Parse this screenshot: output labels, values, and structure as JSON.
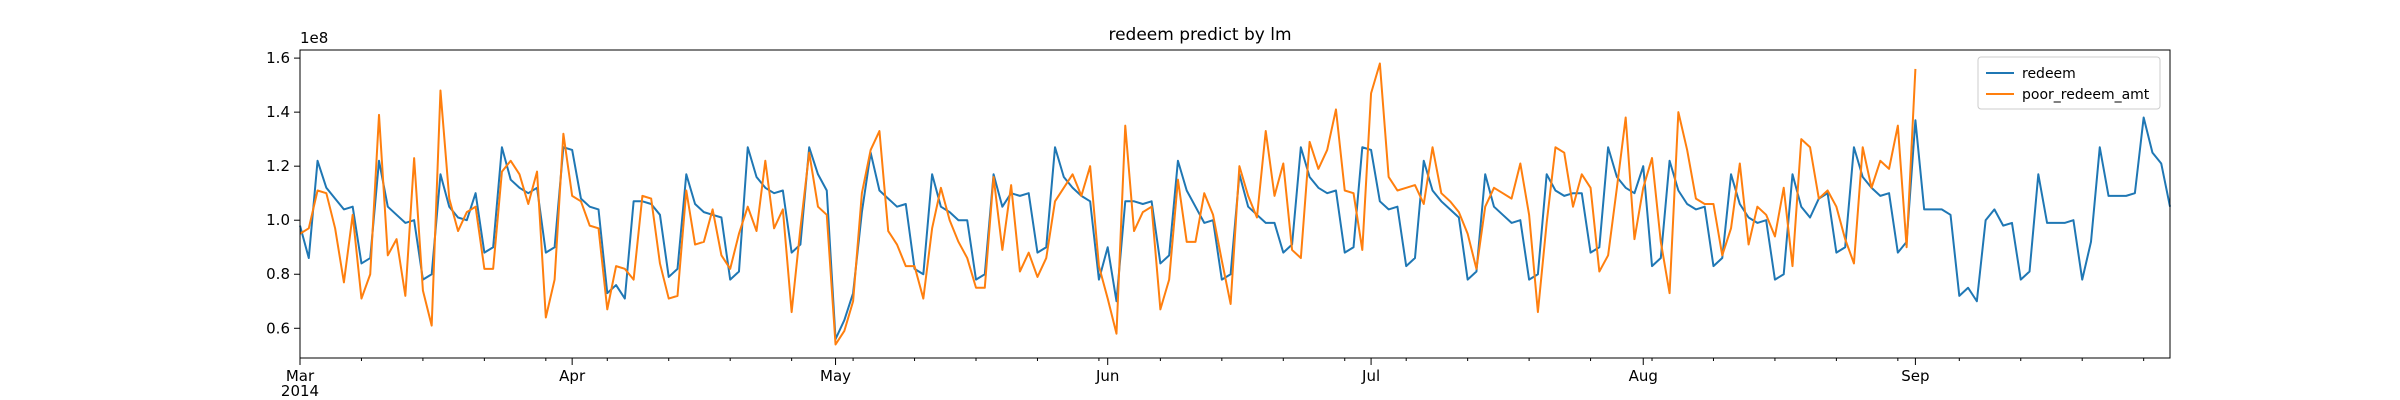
{
  "chart_data": {
    "type": "line",
    "title": "redeem predict by lm",
    "xlabel": "",
    "ylabel": "",
    "y_offset_text": "1e8",
    "x_start": "2014-03-01",
    "x_end": "2014-09-30",
    "ylim": [
      0.49,
      1.63
    ],
    "y_ticks": [
      0.6,
      0.8,
      1.0,
      1.2,
      1.4,
      1.6
    ],
    "y_tick_labels": [
      "0.6",
      "0.8",
      "1.0",
      "1.2",
      "1.4",
      "1.6"
    ],
    "x_ticks": [
      {
        "date": "2014-03-01",
        "label": "Mar",
        "sublabel": "2014"
      },
      {
        "date": "2014-04-01",
        "label": "Apr"
      },
      {
        "date": "2014-05-01",
        "label": "May"
      },
      {
        "date": "2014-06-01",
        "label": "Jun"
      },
      {
        "date": "2014-07-01",
        "label": "Jul"
      },
      {
        "date": "2014-08-01",
        "label": "Aug"
      },
      {
        "date": "2014-09-01",
        "label": "Sep"
      }
    ],
    "grid": false,
    "legend": "top-right",
    "series": [
      {
        "name": "redeem",
        "color": "#1f77b4",
        "start": "2014-03-01",
        "values": [
          0.98,
          0.86,
          1.22,
          1.12,
          1.08,
          1.04,
          1.05,
          0.84,
          0.86,
          1.22,
          1.05,
          1.02,
          0.99,
          1.0,
          0.78,
          0.8,
          1.17,
          1.05,
          1.01,
          1.0,
          1.1,
          0.88,
          0.9,
          1.27,
          1.15,
          1.12,
          1.1,
          1.12,
          0.88,
          0.9,
          1.27,
          1.26,
          1.08,
          1.05,
          1.04,
          0.73,
          0.76,
          0.71,
          1.07,
          1.07,
          1.06,
          1.02,
          0.79,
          0.82,
          1.17,
          1.06,
          1.03,
          1.02,
          1.01,
          0.78,
          0.81,
          1.27,
          1.16,
          1.12,
          1.1,
          1.11,
          0.88,
          0.91,
          1.27,
          1.17,
          1.11,
          0.56,
          0.63,
          0.73,
          1.03,
          1.25,
          1.11,
          1.08,
          1.05,
          1.06,
          0.82,
          0.8,
          1.17,
          1.05,
          1.03,
          1.0,
          1.0,
          0.78,
          0.8,
          1.17,
          1.05,
          1.1,
          1.09,
          1.1,
          0.88,
          0.9,
          1.27,
          1.16,
          1.12,
          1.09,
          1.07,
          0.78,
          0.9,
          0.7,
          1.07,
          1.07,
          1.06,
          1.07,
          0.84,
          0.87,
          1.22,
          1.11,
          1.05,
          0.99,
          1.0,
          0.78,
          0.8,
          1.17,
          1.05,
          1.02,
          0.99,
          0.99,
          0.88,
          0.91,
          1.27,
          1.16,
          1.12,
          1.1,
          1.11,
          0.88,
          0.9,
          1.27,
          1.26,
          1.07,
          1.04,
          1.05,
          0.83,
          0.86,
          1.22,
          1.11,
          1.07,
          1.04,
          1.01,
          0.78,
          0.81,
          1.17,
          1.05,
          1.02,
          0.99,
          1.0,
          0.78,
          0.8,
          1.17,
          1.11,
          1.09,
          1.1,
          1.1,
          0.88,
          0.9,
          1.27,
          1.16,
          1.12,
          1.1,
          1.2,
          0.83,
          0.86,
          1.22,
          1.11,
          1.06,
          1.04,
          1.05,
          0.83,
          0.86,
          1.17,
          1.06,
          1.01,
          0.99,
          1.0,
          0.78,
          0.8,
          1.17,
          1.05,
          1.01,
          1.08,
          1.1,
          0.88,
          0.9,
          1.27,
          1.16,
          1.12,
          1.09,
          1.1,
          0.88,
          0.92,
          1.37,
          1.04,
          1.04,
          1.04,
          1.02,
          0.72,
          0.75,
          0.7,
          1.0,
          1.04,
          0.98,
          0.99,
          0.78,
          0.81,
          1.17,
          0.99,
          0.99,
          0.99,
          1.0,
          0.78,
          0.92,
          1.27,
          1.09,
          1.09,
          1.09,
          1.1,
          1.38,
          1.25,
          1.21,
          1.05
        ]
      },
      {
        "name": "poor_redeem_amt",
        "color": "#ff7f0e",
        "start": "2014-03-01",
        "values": [
          0.95,
          0.97,
          1.11,
          1.1,
          0.97,
          0.77,
          1.02,
          0.71,
          0.8,
          1.39,
          0.87,
          0.93,
          0.72,
          1.23,
          0.74,
          0.61,
          1.48,
          1.08,
          0.96,
          1.03,
          1.05,
          0.82,
          0.82,
          1.18,
          1.22,
          1.17,
          1.06,
          1.18,
          0.64,
          0.78,
          1.32,
          1.09,
          1.07,
          0.98,
          0.97,
          0.67,
          0.83,
          0.82,
          0.78,
          1.09,
          1.08,
          0.84,
          0.71,
          0.72,
          1.11,
          0.91,
          0.92,
          1.04,
          0.87,
          0.82,
          0.95,
          1.05,
          0.96,
          1.22,
          0.97,
          1.04,
          0.66,
          0.97,
          1.25,
          1.05,
          1.02,
          0.54,
          0.59,
          0.7,
          1.1,
          1.26,
          1.33,
          0.96,
          0.91,
          0.83,
          0.83,
          0.71,
          0.97,
          1.12,
          1.0,
          0.92,
          0.86,
          0.75,
          0.75,
          1.16,
          0.89,
          1.13,
          0.81,
          0.88,
          0.79,
          0.86,
          1.07,
          1.12,
          1.17,
          1.09,
          1.2,
          0.83,
          0.71,
          0.58,
          1.35,
          0.96,
          1.03,
          1.05,
          0.67,
          0.78,
          1.15,
          0.92,
          0.92,
          1.1,
          1.02,
          0.85,
          0.69,
          1.2,
          1.09,
          1.01,
          1.33,
          1.09,
          1.21,
          0.89,
          0.86,
          1.29,
          1.19,
          1.26,
          1.41,
          1.11,
          1.1,
          0.89,
          1.47,
          1.58,
          1.16,
          1.11,
          1.12,
          1.13,
          1.06,
          1.27,
          1.1,
          1.07,
          1.03,
          0.95,
          0.82,
          1.05,
          1.12,
          1.1,
          1.08,
          1.21,
          1.02,
          0.66,
          0.99,
          1.27,
          1.25,
          1.05,
          1.17,
          1.12,
          0.81,
          0.87,
          1.12,
          1.38,
          0.93,
          1.12,
          1.23,
          0.92,
          0.73,
          1.4,
          1.26,
          1.08,
          1.06,
          1.06,
          0.87,
          0.97,
          1.21,
          0.91,
          1.05,
          1.02,
          0.94,
          1.12,
          0.83,
          1.3,
          1.27,
          1.08,
          1.11,
          1.05,
          0.93,
          0.84,
          1.27,
          1.12,
          1.22,
          1.19,
          1.35,
          0.9,
          1.56
        ]
      }
    ]
  }
}
